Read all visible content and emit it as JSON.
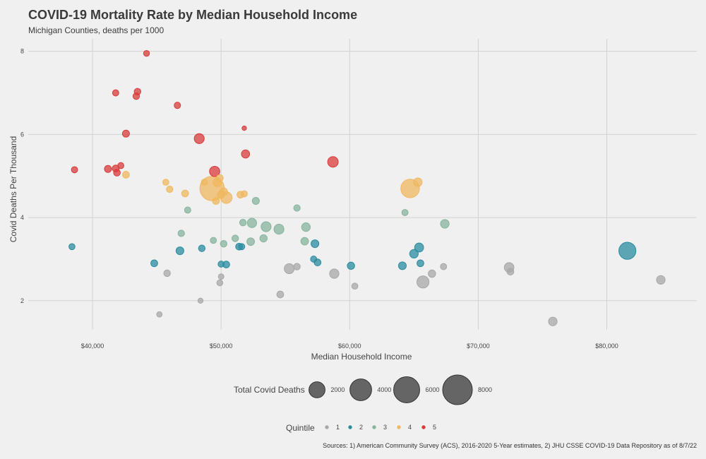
{
  "chart_data": {
    "type": "scatter",
    "title": "COVID-19 Mortality Rate by Median Household Income",
    "subtitle": "Michigan Counties, deaths per 1000",
    "xlabel": "Median Household Income",
    "ylabel": "Covid Deaths Per Thousand",
    "xlim": [
      35000,
      87000
    ],
    "ylim": [
      1.3,
      8.3
    ],
    "x_ticks": [
      40000,
      50000,
      60000,
      70000,
      80000
    ],
    "x_tick_labels": [
      "$40,000",
      "$50,000",
      "$60,000",
      "$70,000",
      "$80,000"
    ],
    "y_ticks": [
      2,
      4,
      6,
      8
    ],
    "y_tick_labels": [
      "2",
      "4",
      "6",
      "8"
    ],
    "grid": true,
    "size_legend": {
      "title": "Total Covid Deaths",
      "values": [
        2000,
        4000,
        6000,
        8000
      ],
      "labels": [
        "2000",
        "4000",
        "6000",
        "8000"
      ]
    },
    "color_legend": {
      "title": "Quintile",
      "labels": [
        "1",
        "2",
        "3",
        "4",
        "5"
      ]
    },
    "colors": {
      "1": "#a8a8a8",
      "2": "#2b8ca0",
      "3": "#87b49c",
      "4": "#f0b860",
      "5": "#d93b3b",
      "background": "#f0f0f0",
      "grid": "#d2d2d2"
    },
    "source": "Sources: 1) American Community Survey (ACS), 2016-2020 5-Year estimates, 2) JHU CSSE COVID-19 Data Repository as of 8/7/22",
    "points": [
      {
        "q": 5,
        "x": 44200,
        "y": 7.95,
        "d": 120
      },
      {
        "q": 5,
        "x": 41800,
        "y": 7.0,
        "d": 150
      },
      {
        "q": 5,
        "x": 43500,
        "y": 7.03,
        "d": 180
      },
      {
        "q": 5,
        "x": 43400,
        "y": 6.92,
        "d": 170
      },
      {
        "q": 5,
        "x": 46600,
        "y": 6.7,
        "d": 160
      },
      {
        "q": 5,
        "x": 42600,
        "y": 6.02,
        "d": 220
      },
      {
        "q": 5,
        "x": 48300,
        "y": 5.9,
        "d": 600
      },
      {
        "q": 5,
        "x": 51800,
        "y": 6.15,
        "d": 40
      },
      {
        "q": 5,
        "x": 51900,
        "y": 5.53,
        "d": 350
      },
      {
        "q": 5,
        "x": 58700,
        "y": 5.34,
        "d": 700
      },
      {
        "q": 5,
        "x": 38600,
        "y": 5.15,
        "d": 150
      },
      {
        "q": 5,
        "x": 41200,
        "y": 5.17,
        "d": 220
      },
      {
        "q": 5,
        "x": 41800,
        "y": 5.18,
        "d": 200
      },
      {
        "q": 5,
        "x": 42200,
        "y": 5.25,
        "d": 140
      },
      {
        "q": 5,
        "x": 41900,
        "y": 5.08,
        "d": 190
      },
      {
        "q": 5,
        "x": 49500,
        "y": 5.11,
        "d": 650
      },
      {
        "q": 4,
        "x": 42600,
        "y": 5.03,
        "d": 200
      },
      {
        "q": 4,
        "x": 45700,
        "y": 4.85,
        "d": 140
      },
      {
        "q": 4,
        "x": 46000,
        "y": 4.68,
        "d": 170
      },
      {
        "q": 4,
        "x": 47200,
        "y": 4.58,
        "d": 200
      },
      {
        "q": 4,
        "x": 48700,
        "y": 4.85,
        "d": 150
      },
      {
        "q": 4,
        "x": 49300,
        "y": 4.7,
        "d": 5200
      },
      {
        "q": 4,
        "x": 49700,
        "y": 4.85,
        "d": 400
      },
      {
        "q": 4,
        "x": 49900,
        "y": 4.95,
        "d": 200
      },
      {
        "q": 4,
        "x": 49600,
        "y": 4.4,
        "d": 200
      },
      {
        "q": 4,
        "x": 50000,
        "y": 4.55,
        "d": 250
      },
      {
        "q": 4,
        "x": 50200,
        "y": 4.62,
        "d": 300
      },
      {
        "q": 4,
        "x": 50400,
        "y": 4.48,
        "d": 900
      },
      {
        "q": 4,
        "x": 51500,
        "y": 4.55,
        "d": 200
      },
      {
        "q": 4,
        "x": 51800,
        "y": 4.57,
        "d": 150
      },
      {
        "q": 4,
        "x": 64700,
        "y": 4.7,
        "d": 2800
      },
      {
        "q": 4,
        "x": 65300,
        "y": 4.85,
        "d": 400
      },
      {
        "q": 3,
        "x": 47400,
        "y": 4.18,
        "d": 150
      },
      {
        "q": 3,
        "x": 52700,
        "y": 4.4,
        "d": 220
      },
      {
        "q": 3,
        "x": 55900,
        "y": 4.23,
        "d": 170
      },
      {
        "q": 3,
        "x": 64300,
        "y": 4.12,
        "d": 150
      },
      {
        "q": 3,
        "x": 46900,
        "y": 3.62,
        "d": 170
      },
      {
        "q": 3,
        "x": 49400,
        "y": 3.45,
        "d": 140
      },
      {
        "q": 3,
        "x": 50200,
        "y": 3.37,
        "d": 180
      },
      {
        "q": 3,
        "x": 51100,
        "y": 3.5,
        "d": 180
      },
      {
        "q": 3,
        "x": 51700,
        "y": 3.88,
        "d": 180
      },
      {
        "q": 3,
        "x": 52400,
        "y": 3.87,
        "d": 500
      },
      {
        "q": 3,
        "x": 53500,
        "y": 3.78,
        "d": 600
      },
      {
        "q": 3,
        "x": 54500,
        "y": 3.72,
        "d": 600
      },
      {
        "q": 3,
        "x": 52300,
        "y": 3.42,
        "d": 280
      },
      {
        "q": 3,
        "x": 53300,
        "y": 3.5,
        "d": 250
      },
      {
        "q": 3,
        "x": 56500,
        "y": 3.43,
        "d": 280
      },
      {
        "q": 3,
        "x": 56600,
        "y": 3.77,
        "d": 400
      },
      {
        "q": 3,
        "x": 67400,
        "y": 3.85,
        "d": 400
      },
      {
        "q": 2,
        "x": 38400,
        "y": 3.3,
        "d": 140
      },
      {
        "q": 2,
        "x": 44800,
        "y": 2.9,
        "d": 200
      },
      {
        "q": 2,
        "x": 46800,
        "y": 3.2,
        "d": 300
      },
      {
        "q": 2,
        "x": 48500,
        "y": 3.26,
        "d": 180
      },
      {
        "q": 2,
        "x": 50000,
        "y": 2.88,
        "d": 140
      },
      {
        "q": 2,
        "x": 50400,
        "y": 2.87,
        "d": 200
      },
      {
        "q": 2,
        "x": 51400,
        "y": 3.3,
        "d": 200
      },
      {
        "q": 2,
        "x": 51600,
        "y": 3.3,
        "d": 150
      },
      {
        "q": 2,
        "x": 57200,
        "y": 3.0,
        "d": 150
      },
      {
        "q": 2,
        "x": 57300,
        "y": 3.37,
        "d": 300
      },
      {
        "q": 2,
        "x": 57500,
        "y": 2.92,
        "d": 200
      },
      {
        "q": 2,
        "x": 60100,
        "y": 2.84,
        "d": 250
      },
      {
        "q": 2,
        "x": 64100,
        "y": 2.84,
        "d": 300
      },
      {
        "q": 2,
        "x": 65400,
        "y": 3.28,
        "d": 450
      },
      {
        "q": 2,
        "x": 65000,
        "y": 3.13,
        "d": 400
      },
      {
        "q": 2,
        "x": 65500,
        "y": 2.9,
        "d": 200
      },
      {
        "q": 2,
        "x": 81600,
        "y": 3.2,
        "d": 2300
      },
      {
        "q": 1,
        "x": 45800,
        "y": 2.66,
        "d": 180
      },
      {
        "q": 1,
        "x": 45200,
        "y": 1.67,
        "d": 90
      },
      {
        "q": 1,
        "x": 48400,
        "y": 2.0,
        "d": 80
      },
      {
        "q": 1,
        "x": 50000,
        "y": 2.58,
        "d": 100
      },
      {
        "q": 1,
        "x": 49900,
        "y": 2.43,
        "d": 130
      },
      {
        "q": 1,
        "x": 54600,
        "y": 2.15,
        "d": 200
      },
      {
        "q": 1,
        "x": 55300,
        "y": 2.77,
        "d": 600
      },
      {
        "q": 1,
        "x": 55900,
        "y": 2.82,
        "d": 180
      },
      {
        "q": 1,
        "x": 58800,
        "y": 2.65,
        "d": 500
      },
      {
        "q": 1,
        "x": 60400,
        "y": 2.35,
        "d": 140
      },
      {
        "q": 1,
        "x": 65700,
        "y": 2.45,
        "d": 1000
      },
      {
        "q": 1,
        "x": 66400,
        "y": 2.65,
        "d": 260
      },
      {
        "q": 1,
        "x": 67300,
        "y": 2.82,
        "d": 150
      },
      {
        "q": 1,
        "x": 72400,
        "y": 2.8,
        "d": 550
      },
      {
        "q": 1,
        "x": 72500,
        "y": 2.7,
        "d": 200
      },
      {
        "q": 1,
        "x": 75800,
        "y": 1.5,
        "d": 400
      },
      {
        "q": 1,
        "x": 84200,
        "y": 2.5,
        "d": 400
      }
    ]
  }
}
